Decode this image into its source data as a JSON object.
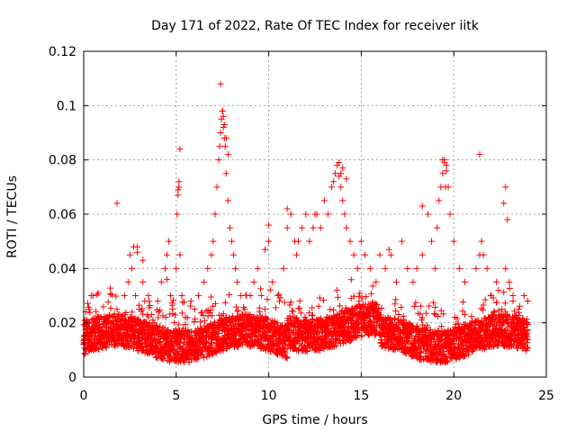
{
  "chart_data": {
    "type": "scatter",
    "title": "Day 171 of 2022, Rate Of TEC Index for receiver iitk",
    "xlabel": "GPS time / hours",
    "ylabel": "ROTI / TECUs",
    "xlim": [
      0,
      25
    ],
    "ylim": [
      0,
      0.12
    ],
    "x_ticks": [
      "0",
      "5",
      "10",
      "15",
      "20",
      "25"
    ],
    "y_ticks": [
      "0",
      "0.02",
      "0.04",
      "0.06",
      "0.08",
      "0.1",
      "0.12"
    ],
    "grid": true,
    "legend": "none",
    "marker": "plus",
    "color": "#ff0000",
    "series": [
      {
        "x": [
          0.0,
          0.1,
          0.2,
          0.3,
          0.4,
          0.5,
          0.6,
          0.8,
          1.0,
          1.2,
          1.5,
          1.8,
          2.0,
          2.2,
          2.4,
          2.5,
          2.6,
          2.7,
          2.8,
          2.9,
          3.0,
          3.1,
          3.2,
          3.3,
          3.5,
          3.8,
          4.0,
          4.2,
          4.4,
          4.5,
          4.6,
          4.7,
          4.8,
          4.9,
          5.0,
          5.05,
          5.1,
          5.15,
          5.2,
          5.3,
          5.5,
          5.8,
          6.0,
          6.2,
          6.5,
          6.7,
          6.9,
          7.0,
          7.1,
          7.2,
          7.3,
          7.35,
          7.4,
          7.45,
          7.5,
          7.55,
          7.6,
          7.65,
          7.7,
          7.8,
          7.9,
          8.0,
          8.1,
          8.2,
          8.3,
          8.5,
          8.7,
          9.0,
          9.2,
          9.4,
          9.6,
          9.8,
          10.0,
          10.2,
          10.5,
          10.8,
          11.0,
          11.2,
          11.4,
          11.5,
          11.6,
          11.8,
          12.0,
          12.2,
          12.4,
          12.6,
          12.8,
          13.0,
          13.2,
          13.4,
          13.5,
          13.6,
          13.7,
          13.8,
          13.9,
          14.0,
          14.1,
          14.2,
          14.4,
          14.6,
          14.8,
          15.0,
          15.2,
          15.5,
          15.8,
          16.0,
          16.3,
          16.6,
          16.9,
          17.2,
          17.5,
          17.8,
          18.0,
          18.3,
          18.6,
          18.8,
          19.0,
          19.1,
          19.2,
          19.3,
          19.4,
          19.5,
          19.6,
          19.7,
          19.8,
          20.0,
          20.3,
          20.6,
          21.0,
          21.2,
          21.4,
          21.5,
          21.6,
          21.8,
          22.0,
          22.3,
          22.6,
          22.8,
          23.0,
          23.2,
          23.5,
          23.8,
          24.0,
          1.8,
          7.4,
          7.5,
          7.55,
          7.6,
          7.7,
          7.8,
          5.2,
          5.15,
          5.1,
          13.8,
          14.0,
          13.9,
          14.2,
          19.4,
          19.5,
          19.6,
          19.55,
          21.4,
          22.8,
          22.7,
          22.9,
          18.3,
          16.5,
          12.5,
          11.0,
          10.0,
          9.8,
          6.2,
          4.5,
          3.2,
          2.9,
          0.5
        ],
        "y": [
          0.012,
          0.015,
          0.02,
          0.025,
          0.03,
          0.018,
          0.014,
          0.022,
          0.013,
          0.02,
          0.016,
          0.025,
          0.018,
          0.03,
          0.035,
          0.045,
          0.04,
          0.048,
          0.03,
          0.046,
          0.025,
          0.02,
          0.035,
          0.028,
          0.03,
          0.02,
          0.028,
          0.035,
          0.04,
          0.045,
          0.05,
          0.03,
          0.025,
          0.02,
          0.04,
          0.06,
          0.067,
          0.072,
          0.045,
          0.03,
          0.022,
          0.028,
          0.025,
          0.03,
          0.035,
          0.04,
          0.045,
          0.05,
          0.06,
          0.07,
          0.08,
          0.085,
          0.09,
          0.095,
          0.098,
          0.092,
          0.088,
          0.085,
          0.075,
          0.065,
          0.055,
          0.05,
          0.045,
          0.04,
          0.035,
          0.03,
          0.025,
          0.03,
          0.035,
          0.04,
          0.03,
          0.025,
          0.05,
          0.035,
          0.03,
          0.04,
          0.055,
          0.06,
          0.05,
          0.045,
          0.05,
          0.055,
          0.06,
          0.05,
          0.055,
          0.06,
          0.055,
          0.065,
          0.06,
          0.07,
          0.072,
          0.075,
          0.078,
          0.074,
          0.07,
          0.065,
          0.06,
          0.055,
          0.05,
          0.045,
          0.04,
          0.05,
          0.045,
          0.04,
          0.035,
          0.045,
          0.04,
          0.045,
          0.035,
          0.05,
          0.04,
          0.035,
          0.04,
          0.045,
          0.06,
          0.05,
          0.04,
          0.055,
          0.065,
          0.07,
          0.075,
          0.08,
          0.078,
          0.07,
          0.06,
          0.05,
          0.04,
          0.035,
          0.02,
          0.04,
          0.045,
          0.05,
          0.045,
          0.04,
          0.03,
          0.035,
          0.025,
          0.04,
          0.035,
          0.03,
          0.025,
          0.03,
          0.028,
          0.064,
          0.108,
          0.098,
          0.096,
          0.093,
          0.088,
          0.082,
          0.084,
          0.07,
          0.069,
          0.079,
          0.077,
          0.075,
          0.073,
          0.08,
          0.079,
          0.076,
          0.07,
          0.082,
          0.07,
          0.064,
          0.058,
          0.063,
          0.047,
          0.06,
          0.062,
          0.056,
          0.047,
          0.03,
          0.036,
          0.043,
          0.048,
          0.03
        ]
      }
    ]
  }
}
